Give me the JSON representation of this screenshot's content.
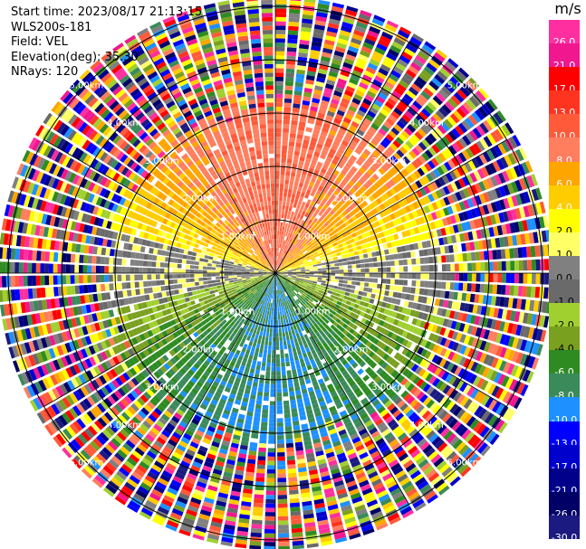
{
  "info": {
    "start_time": "Start time: 2023/08/17 21:13:15",
    "instrument": "WLS200s-181",
    "field": "Field: VEL",
    "elevation": "Elevation(deg): 35.30",
    "nrays": "NRays: 120"
  },
  "colorbar": {
    "unit": "m/s",
    "ticks": [
      "26.0",
      "21.0",
      "17.0",
      "13.0",
      "10.0",
      "8.0",
      "6.0",
      "4.0",
      "2.0",
      "1.0",
      "0.0",
      "-1.0",
      "-2.0",
      "-4.0",
      "-6.0",
      "-8.0",
      "-10.0",
      "-13.0",
      "-17.0",
      "-21.0",
      "-26.0",
      "-30.0"
    ],
    "colors": [
      "#ff2fa0",
      "#f0178f",
      "#ff0000",
      "#ff3420",
      "#ff5a3a",
      "#ff7e5e",
      "#ffa500",
      "#ffcc00",
      "#ffff00",
      "#ffff66",
      "#808080",
      "#6a6a6a",
      "#a0d030",
      "#7aa020",
      "#2e8b22",
      "#3a8a5a",
      "#1e90ff",
      "#0000ff",
      "#0000cd",
      "#00008b",
      "#000066",
      "#1a1a80"
    ]
  },
  "chart_data": {
    "type": "ppi",
    "field": "VEL",
    "units": "m/s",
    "n_rays": 120,
    "elevation_deg": 35.3,
    "range_rings_km": [
      1.0,
      2.0,
      3.0,
      4.0,
      5.0
    ],
    "ring_label_text": [
      "1.00km",
      "2.00km",
      "3.00km",
      "4.00km",
      "5.00km"
    ],
    "clim": [
      -30.0,
      26.0
    ],
    "velocity_pattern": [
      {
        "sector": "north",
        "value_ms": 8.0
      },
      {
        "sector": "north-flanks",
        "value_ms": 4.0
      },
      {
        "sector": "east-west",
        "value_ms": 0.0
      },
      {
        "sector": "south",
        "value_ms": -6.0
      },
      {
        "sector": "south-core",
        "value_ms": -10.0
      }
    ],
    "noise_beyond_km": 2.9
  }
}
